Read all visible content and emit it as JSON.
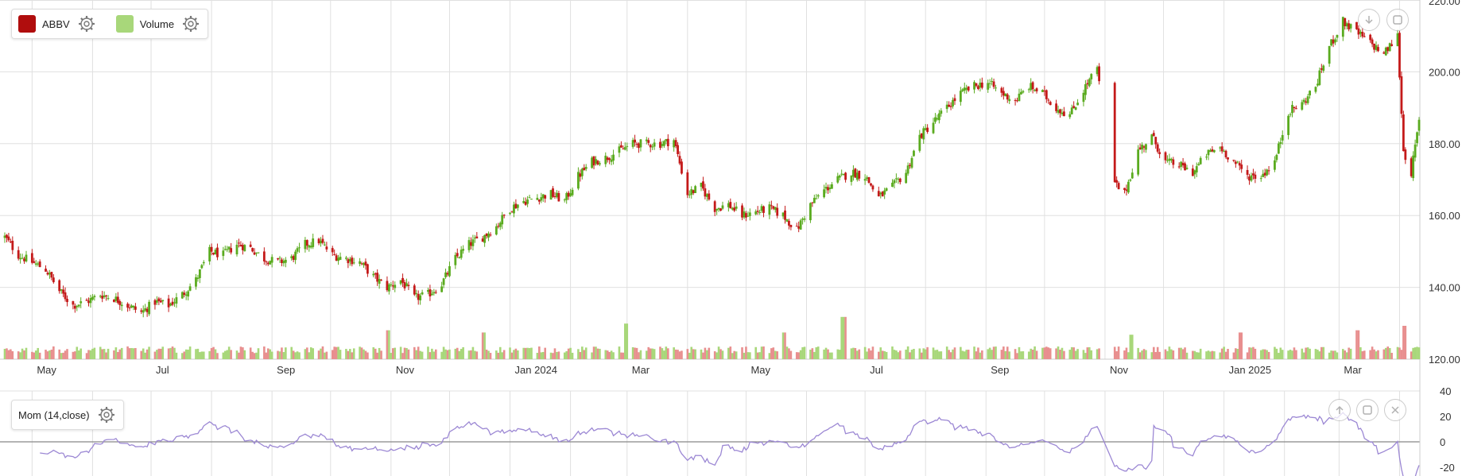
{
  "main_legend": {
    "items": [
      {
        "label": "ABBV",
        "color": "#b00d0d",
        "gear_icon": "gear-icon"
      },
      {
        "label": "Volume",
        "color": "#a8d77a",
        "gear_icon": "gear-icon"
      }
    ]
  },
  "sub_legend": {
    "items": [
      {
        "label": "Mom (14,close)",
        "gear_icon": "gear-icon"
      }
    ]
  },
  "colors": {
    "up": "#5aab1f",
    "down": "#c41a1a",
    "volume_up": "#a8d77a",
    "volume_down": "#e88f8f",
    "momentum": "#9c88d4",
    "grid": "#e0e0e0",
    "zero_line": "#888888"
  },
  "toolbar": {
    "main": [
      "download-icon",
      "fullscreen-icon"
    ],
    "sub": [
      "move-up-icon",
      "fullscreen-icon",
      "close-icon"
    ]
  },
  "chart_data": [
    {
      "type": "candlestick",
      "series_name": "ABBV",
      "x_ticks": [
        "May",
        "Jul",
        "Sep",
        "Nov",
        "Jan 2024",
        "Mar",
        "May",
        "Jul",
        "Sep",
        "Nov",
        "Jan 2025",
        "Mar"
      ],
      "y_ticks": [
        "120.00",
        "140.00",
        "160.00",
        "180.00",
        "200.00",
        "220.00"
      ],
      "ylim": [
        120,
        220
      ],
      "x_range": [
        "2023-04-17",
        "2025-04-11"
      ],
      "close_series": [
        [
          "2023-04-17",
          154
        ],
        [
          "2023-04-24",
          149
        ],
        [
          "2023-05-01",
          147
        ],
        [
          "2023-05-08",
          145
        ],
        [
          "2023-05-15",
          139
        ],
        [
          "2023-05-22",
          135
        ],
        [
          "2023-05-29",
          136
        ],
        [
          "2023-06-05",
          138
        ],
        [
          "2023-06-12",
          137
        ],
        [
          "2023-06-19",
          135
        ],
        [
          "2023-06-26",
          133
        ],
        [
          "2023-07-03",
          136
        ],
        [
          "2023-07-10",
          135
        ],
        [
          "2023-07-17",
          138
        ],
        [
          "2023-07-24",
          142
        ],
        [
          "2023-07-31",
          150
        ],
        [
          "2023-08-07",
          149
        ],
        [
          "2023-08-14",
          152
        ],
        [
          "2023-08-21",
          151
        ],
        [
          "2023-08-28",
          148
        ],
        [
          "2023-09-04",
          147
        ],
        [
          "2023-09-11",
          148
        ],
        [
          "2023-09-18",
          152
        ],
        [
          "2023-09-25",
          153
        ],
        [
          "2023-10-02",
          149
        ],
        [
          "2023-10-09",
          148
        ],
        [
          "2023-10-16",
          147
        ],
        [
          "2023-10-23",
          143
        ],
        [
          "2023-10-30",
          140
        ],
        [
          "2023-11-06",
          142
        ],
        [
          "2023-11-13",
          137
        ],
        [
          "2023-11-20",
          138
        ],
        [
          "2023-11-27",
          141
        ],
        [
          "2023-12-04",
          148
        ],
        [
          "2023-12-11",
          152
        ],
        [
          "2023-12-18",
          154
        ],
        [
          "2023-12-25",
          157
        ],
        [
          "2024-01-01",
          162
        ],
        [
          "2024-01-08",
          164
        ],
        [
          "2024-01-15",
          165
        ],
        [
          "2024-01-22",
          166
        ],
        [
          "2024-01-29",
          164
        ],
        [
          "2024-02-05",
          171
        ],
        [
          "2024-02-12",
          175
        ],
        [
          "2024-02-19",
          176
        ],
        [
          "2024-02-26",
          178
        ],
        [
          "2024-03-04",
          180
        ],
        [
          "2024-03-11",
          180
        ],
        [
          "2024-03-18",
          180
        ],
        [
          "2024-03-25",
          181
        ],
        [
          "2024-04-01",
          166
        ],
        [
          "2024-04-08",
          168
        ],
        [
          "2024-04-15",
          162
        ],
        [
          "2024-04-22",
          163
        ],
        [
          "2024-04-29",
          160
        ],
        [
          "2024-05-06",
          161
        ],
        [
          "2024-05-13",
          162
        ],
        [
          "2024-05-20",
          160
        ],
        [
          "2024-05-27",
          156
        ],
        [
          "2024-06-03",
          163
        ],
        [
          "2024-06-10",
          167
        ],
        [
          "2024-06-17",
          170
        ],
        [
          "2024-06-24",
          172
        ],
        [
          "2024-07-01",
          171
        ],
        [
          "2024-07-08",
          165
        ],
        [
          "2024-07-15",
          168
        ],
        [
          "2024-07-22",
          172
        ],
        [
          "2024-07-29",
          182
        ],
        [
          "2024-08-05",
          186
        ],
        [
          "2024-08-12",
          190
        ],
        [
          "2024-08-19",
          194
        ],
        [
          "2024-08-26",
          196
        ],
        [
          "2024-09-02",
          197
        ],
        [
          "2024-09-09",
          194
        ],
        [
          "2024-09-16",
          192
        ],
        [
          "2024-09-23",
          196
        ],
        [
          "2024-09-30",
          194
        ],
        [
          "2024-10-07",
          190
        ],
        [
          "2024-10-14",
          188
        ],
        [
          "2024-10-21",
          195
        ],
        [
          "2024-10-28",
          201
        ],
        [
          "2024-11-04",
          170
        ],
        [
          "2024-11-11",
          166
        ],
        [
          "2024-11-18",
          178
        ],
        [
          "2024-11-25",
          182
        ],
        [
          "2024-12-02",
          175
        ],
        [
          "2024-12-09",
          174
        ],
        [
          "2024-12-16",
          172
        ],
        [
          "2024-12-23",
          177
        ],
        [
          "2024-12-30",
          179
        ],
        [
          "2025-01-06",
          175
        ],
        [
          "2025-01-13",
          171
        ],
        [
          "2025-01-20",
          171
        ],
        [
          "2025-01-27",
          175
        ],
        [
          "2025-02-03",
          189
        ],
        [
          "2025-02-10",
          191
        ],
        [
          "2025-02-17",
          196
        ],
        [
          "2025-02-24",
          207
        ],
        [
          "2025-03-03",
          214
        ],
        [
          "2025-03-10",
          211
        ],
        [
          "2025-03-17",
          208
        ],
        [
          "2025-03-24",
          205
        ],
        [
          "2025-03-31",
          210
        ],
        [
          "2025-04-03",
          178
        ],
        [
          "2025-04-07",
          172
        ],
        [
          "2025-04-09",
          179
        ],
        [
          "2025-04-11",
          186
        ]
      ],
      "gaps": [
        [
          "2024-10-30",
          "2024-11-05"
        ]
      ]
    },
    {
      "type": "bar",
      "series_name": "Volume",
      "relative_volume_spikes": [
        [
          "2023-10-30",
          2.6
        ],
        [
          "2023-12-18",
          2.4
        ],
        [
          "2024-03-01",
          3.2
        ],
        [
          "2024-05-20",
          2.4
        ],
        [
          "2024-06-20",
          3.8
        ],
        [
          "2024-11-01",
          3.1
        ],
        [
          "2024-11-15",
          2.2
        ],
        [
          "2025-01-10",
          2.4
        ],
        [
          "2025-03-10",
          2.6
        ],
        [
          "2025-04-04",
          3.0
        ]
      ]
    },
    {
      "type": "line",
      "series_name": "Mom (14,close)",
      "y_ticks": [
        "40",
        "20",
        "0",
        "-20"
      ],
      "ylim": [
        -30,
        40
      ]
    }
  ]
}
